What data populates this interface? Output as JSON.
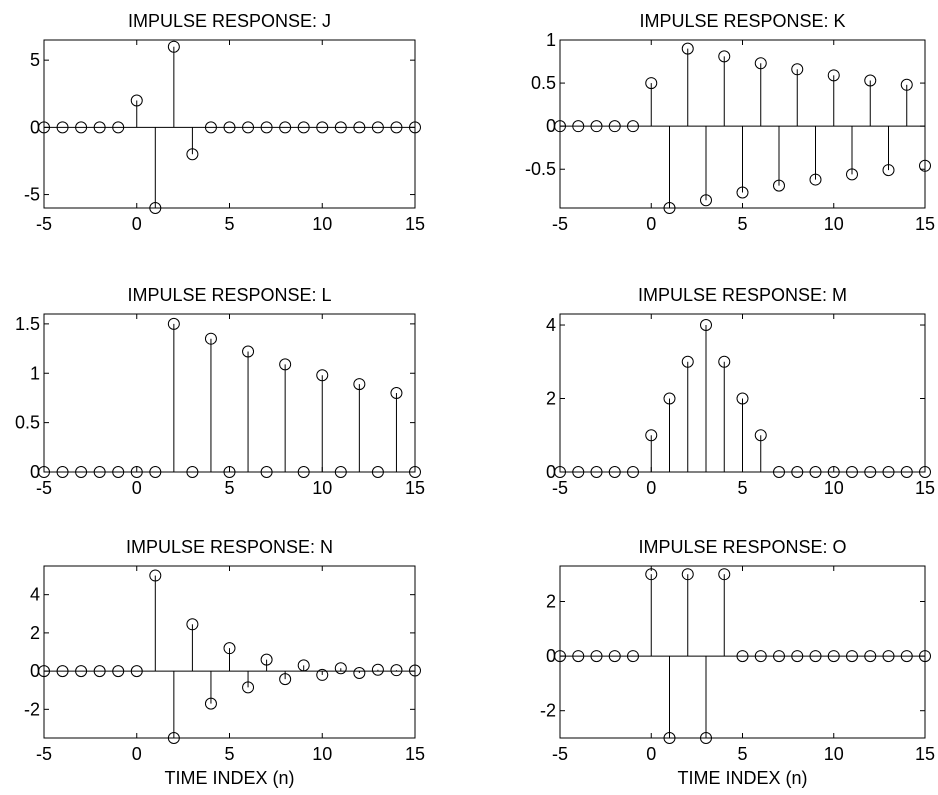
{
  "chart_data": [
    {
      "type": "stem",
      "title": "IMPULSE RESPONSE:  J",
      "xlim": [
        -5,
        15
      ],
      "ylim": [
        -6,
        6.5
      ],
      "xticks": [
        "-5",
        "0",
        "5",
        "10",
        "15"
      ],
      "yticks": [
        {
          "value": -5,
          "label": "-5"
        },
        {
          "value": 0,
          "label": "0"
        },
        {
          "value": 5,
          "label": "5"
        }
      ],
      "xlabel": "",
      "x": [
        -5,
        -4,
        -3,
        -2,
        -1,
        0,
        1,
        2,
        3,
        4,
        5,
        6,
        7,
        8,
        9,
        10,
        11,
        12,
        13,
        14,
        15
      ],
      "y": [
        0,
        0,
        0,
        0,
        0,
        2,
        -6,
        6,
        -2,
        0,
        0,
        0,
        0,
        0,
        0,
        0,
        0,
        0,
        0,
        0,
        0
      ]
    },
    {
      "type": "stem",
      "title": "IMPULSE RESPONSE:  K",
      "xlim": [
        -5,
        15
      ],
      "ylim": [
        -0.95,
        1.0
      ],
      "xticks": [
        "-5",
        "0",
        "5",
        "10",
        "15"
      ],
      "yticks": [
        {
          "value": -0.5,
          "label": "-0.5"
        },
        {
          "value": 0,
          "label": "0"
        },
        {
          "value": 0.5,
          "label": "0.5"
        },
        {
          "value": 1,
          "label": "1"
        }
      ],
      "xlabel": "",
      "x": [
        -5,
        -4,
        -3,
        -2,
        -1,
        0,
        1,
        2,
        3,
        4,
        5,
        6,
        7,
        8,
        9,
        10,
        11,
        12,
        13,
        14,
        15
      ],
      "y": [
        0,
        0,
        0,
        0,
        0,
        0.5,
        -0.95,
        0.9,
        -0.86,
        0.81,
        -0.77,
        0.73,
        -0.69,
        0.66,
        -0.62,
        0.59,
        -0.56,
        0.53,
        -0.51,
        0.48,
        -0.46
      ]
    },
    {
      "type": "stem",
      "title": "IMPULSE RESPONSE:  L",
      "xlim": [
        -5,
        15
      ],
      "ylim": [
        0,
        1.6
      ],
      "xticks": [
        "-5",
        "0",
        "5",
        "10",
        "15"
      ],
      "yticks": [
        {
          "value": 0,
          "label": "0"
        },
        {
          "value": 0.5,
          "label": "0.5"
        },
        {
          "value": 1,
          "label": "1"
        },
        {
          "value": 1.5,
          "label": "1.5"
        }
      ],
      "xlabel": "",
      "x": [
        -5,
        -4,
        -3,
        -2,
        -1,
        0,
        1,
        2,
        3,
        4,
        5,
        6,
        7,
        8,
        9,
        10,
        11,
        12,
        13,
        14,
        15
      ],
      "y": [
        0,
        0,
        0,
        0,
        0,
        0,
        0,
        1.5,
        0,
        1.35,
        0,
        1.22,
        0,
        1.09,
        0,
        0.98,
        0,
        0.89,
        0,
        0.8,
        0
      ]
    },
    {
      "type": "stem",
      "title": "IMPULSE RESPONSE:  M",
      "xlim": [
        -5,
        15
      ],
      "ylim": [
        0,
        4.3
      ],
      "xticks": [
        "-5",
        "0",
        "5",
        "10",
        "15"
      ],
      "yticks": [
        {
          "value": 0,
          "label": "0"
        },
        {
          "value": 2,
          "label": "2"
        },
        {
          "value": 4,
          "label": "4"
        }
      ],
      "xlabel": "",
      "x": [
        -5,
        -4,
        -3,
        -2,
        -1,
        0,
        1,
        2,
        3,
        4,
        5,
        6,
        7,
        8,
        9,
        10,
        11,
        12,
        13,
        14,
        15
      ],
      "y": [
        0,
        0,
        0,
        0,
        0,
        1,
        2,
        3,
        4,
        3,
        2,
        1,
        0,
        0,
        0,
        0,
        0,
        0,
        0,
        0,
        0
      ]
    },
    {
      "type": "stem",
      "title": "IMPULSE RESPONSE:  N",
      "xlim": [
        -5,
        15
      ],
      "ylim": [
        -3.5,
        5.5
      ],
      "xticks": [
        "-5",
        "0",
        "5",
        "10",
        "15"
      ],
      "yticks": [
        {
          "value": -2,
          "label": "-2"
        },
        {
          "value": 0,
          "label": "0"
        },
        {
          "value": 2,
          "label": "2"
        },
        {
          "value": 4,
          "label": "4"
        }
      ],
      "xlabel": "TIME INDEX  (n)",
      "x": [
        -5,
        -4,
        -3,
        -2,
        -1,
        0,
        1,
        2,
        3,
        4,
        5,
        6,
        7,
        8,
        9,
        10,
        11,
        12,
        13,
        14,
        15
      ],
      "y": [
        0,
        0,
        0,
        0,
        0,
        0,
        5,
        -3.5,
        2.45,
        -1.7,
        1.2,
        -0.85,
        0.6,
        -0.42,
        0.3,
        -0.2,
        0.15,
        -0.1,
        0.07,
        0.05,
        0.03
      ]
    },
    {
      "type": "stem",
      "title": "IMPULSE RESPONSE:  O",
      "xlim": [
        -5,
        15
      ],
      "ylim": [
        -3,
        3.3
      ],
      "xticks": [
        "-5",
        "0",
        "5",
        "10",
        "15"
      ],
      "yticks": [
        {
          "value": -2,
          "label": "-2"
        },
        {
          "value": 0,
          "label": "0"
        },
        {
          "value": 2,
          "label": "2"
        }
      ],
      "xlabel": "TIME INDEX  (n)",
      "x": [
        -5,
        -4,
        -3,
        -2,
        -1,
        0,
        1,
        2,
        3,
        4,
        5,
        6,
        7,
        8,
        9,
        10,
        11,
        12,
        13,
        14,
        15
      ],
      "y": [
        0,
        0,
        0,
        0,
        0,
        3,
        -3,
        3,
        -3,
        3,
        0,
        0,
        0,
        0,
        0,
        0,
        0,
        0,
        0,
        0,
        0
      ]
    }
  ]
}
